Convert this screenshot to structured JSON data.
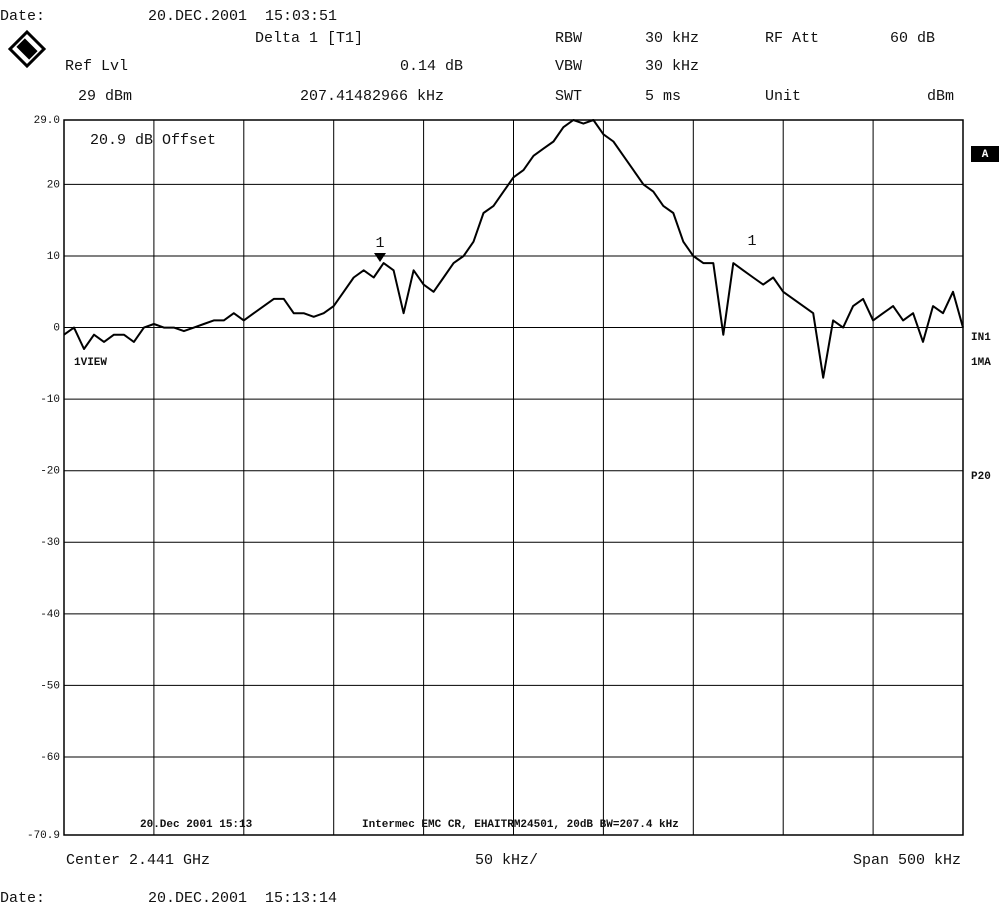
{
  "header": {
    "date_label": "Date:",
    "date": "20.DEC.2001  15:03:51",
    "marker_label": "Delta 1 [T1]",
    "rbw_label": "RBW",
    "rbw": "30 kHz",
    "att_label": "RF Att",
    "att": "60 dB",
    "ref_label": "Ref Lvl",
    "delta_level": "0.14 dB",
    "vbw_label": "VBW",
    "vbw": "30 kHz",
    "ref_level": "29 dBm",
    "delta_freq": "207.41482966 kHz",
    "swt_label": "SWT",
    "swt": "5 ms",
    "unit_label": "Unit",
    "unit": "dBm"
  },
  "side_labels": [
    "A",
    "IN1",
    "1MA",
    "P20"
  ],
  "footer": {
    "center": "Center 2.441 GHz",
    "div": "50 kHz/",
    "span": "Span 500 kHz",
    "date_label": "Date:",
    "date": "20.DEC.2001  15:13:14"
  },
  "chart_data": {
    "type": "line",
    "annotations": {
      "offset": "20.9 dB Offset",
      "view": "1VIEW",
      "marker1": "1",
      "marker2": "1",
      "stamp": "20.Dec 2001 15:13",
      "comment": "Intermec EMC CR, EHAITRM24501, 20dB BW=207.4 kHz"
    },
    "values": [
      -1,
      0,
      -3,
      -1,
      -2,
      -1,
      -1,
      -2,
      0,
      0.5,
      0,
      0,
      -0.5,
      0,
      0.5,
      1,
      1,
      2,
      1,
      2,
      3,
      4,
      4,
      2,
      2,
      1.5,
      2,
      3,
      5,
      7,
      8,
      7,
      9,
      8,
      2,
      8,
      6,
      5,
      7,
      9,
      10,
      12,
      16,
      17,
      19,
      21,
      22,
      24,
      25,
      26,
      28,
      29,
      28.5,
      29,
      27,
      26,
      24,
      22,
      20,
      19,
      17,
      16,
      12,
      10,
      9,
      9,
      -1,
      9,
      8,
      7,
      6,
      7,
      5,
      4,
      3,
      2,
      -7,
      1,
      0,
      3,
      4,
      1,
      2,
      3,
      1,
      2,
      -2,
      3,
      2,
      5,
      0
    ],
    "color": "#000000",
    "ylim": [
      -70.9,
      29
    ],
    "yticks": [
      {
        "value": 29,
        "label": "29.0"
      },
      20,
      10,
      0,
      -10,
      -20,
      -30,
      -40,
      -50,
      -60,
      -70.9
    ],
    "grid": true
  }
}
